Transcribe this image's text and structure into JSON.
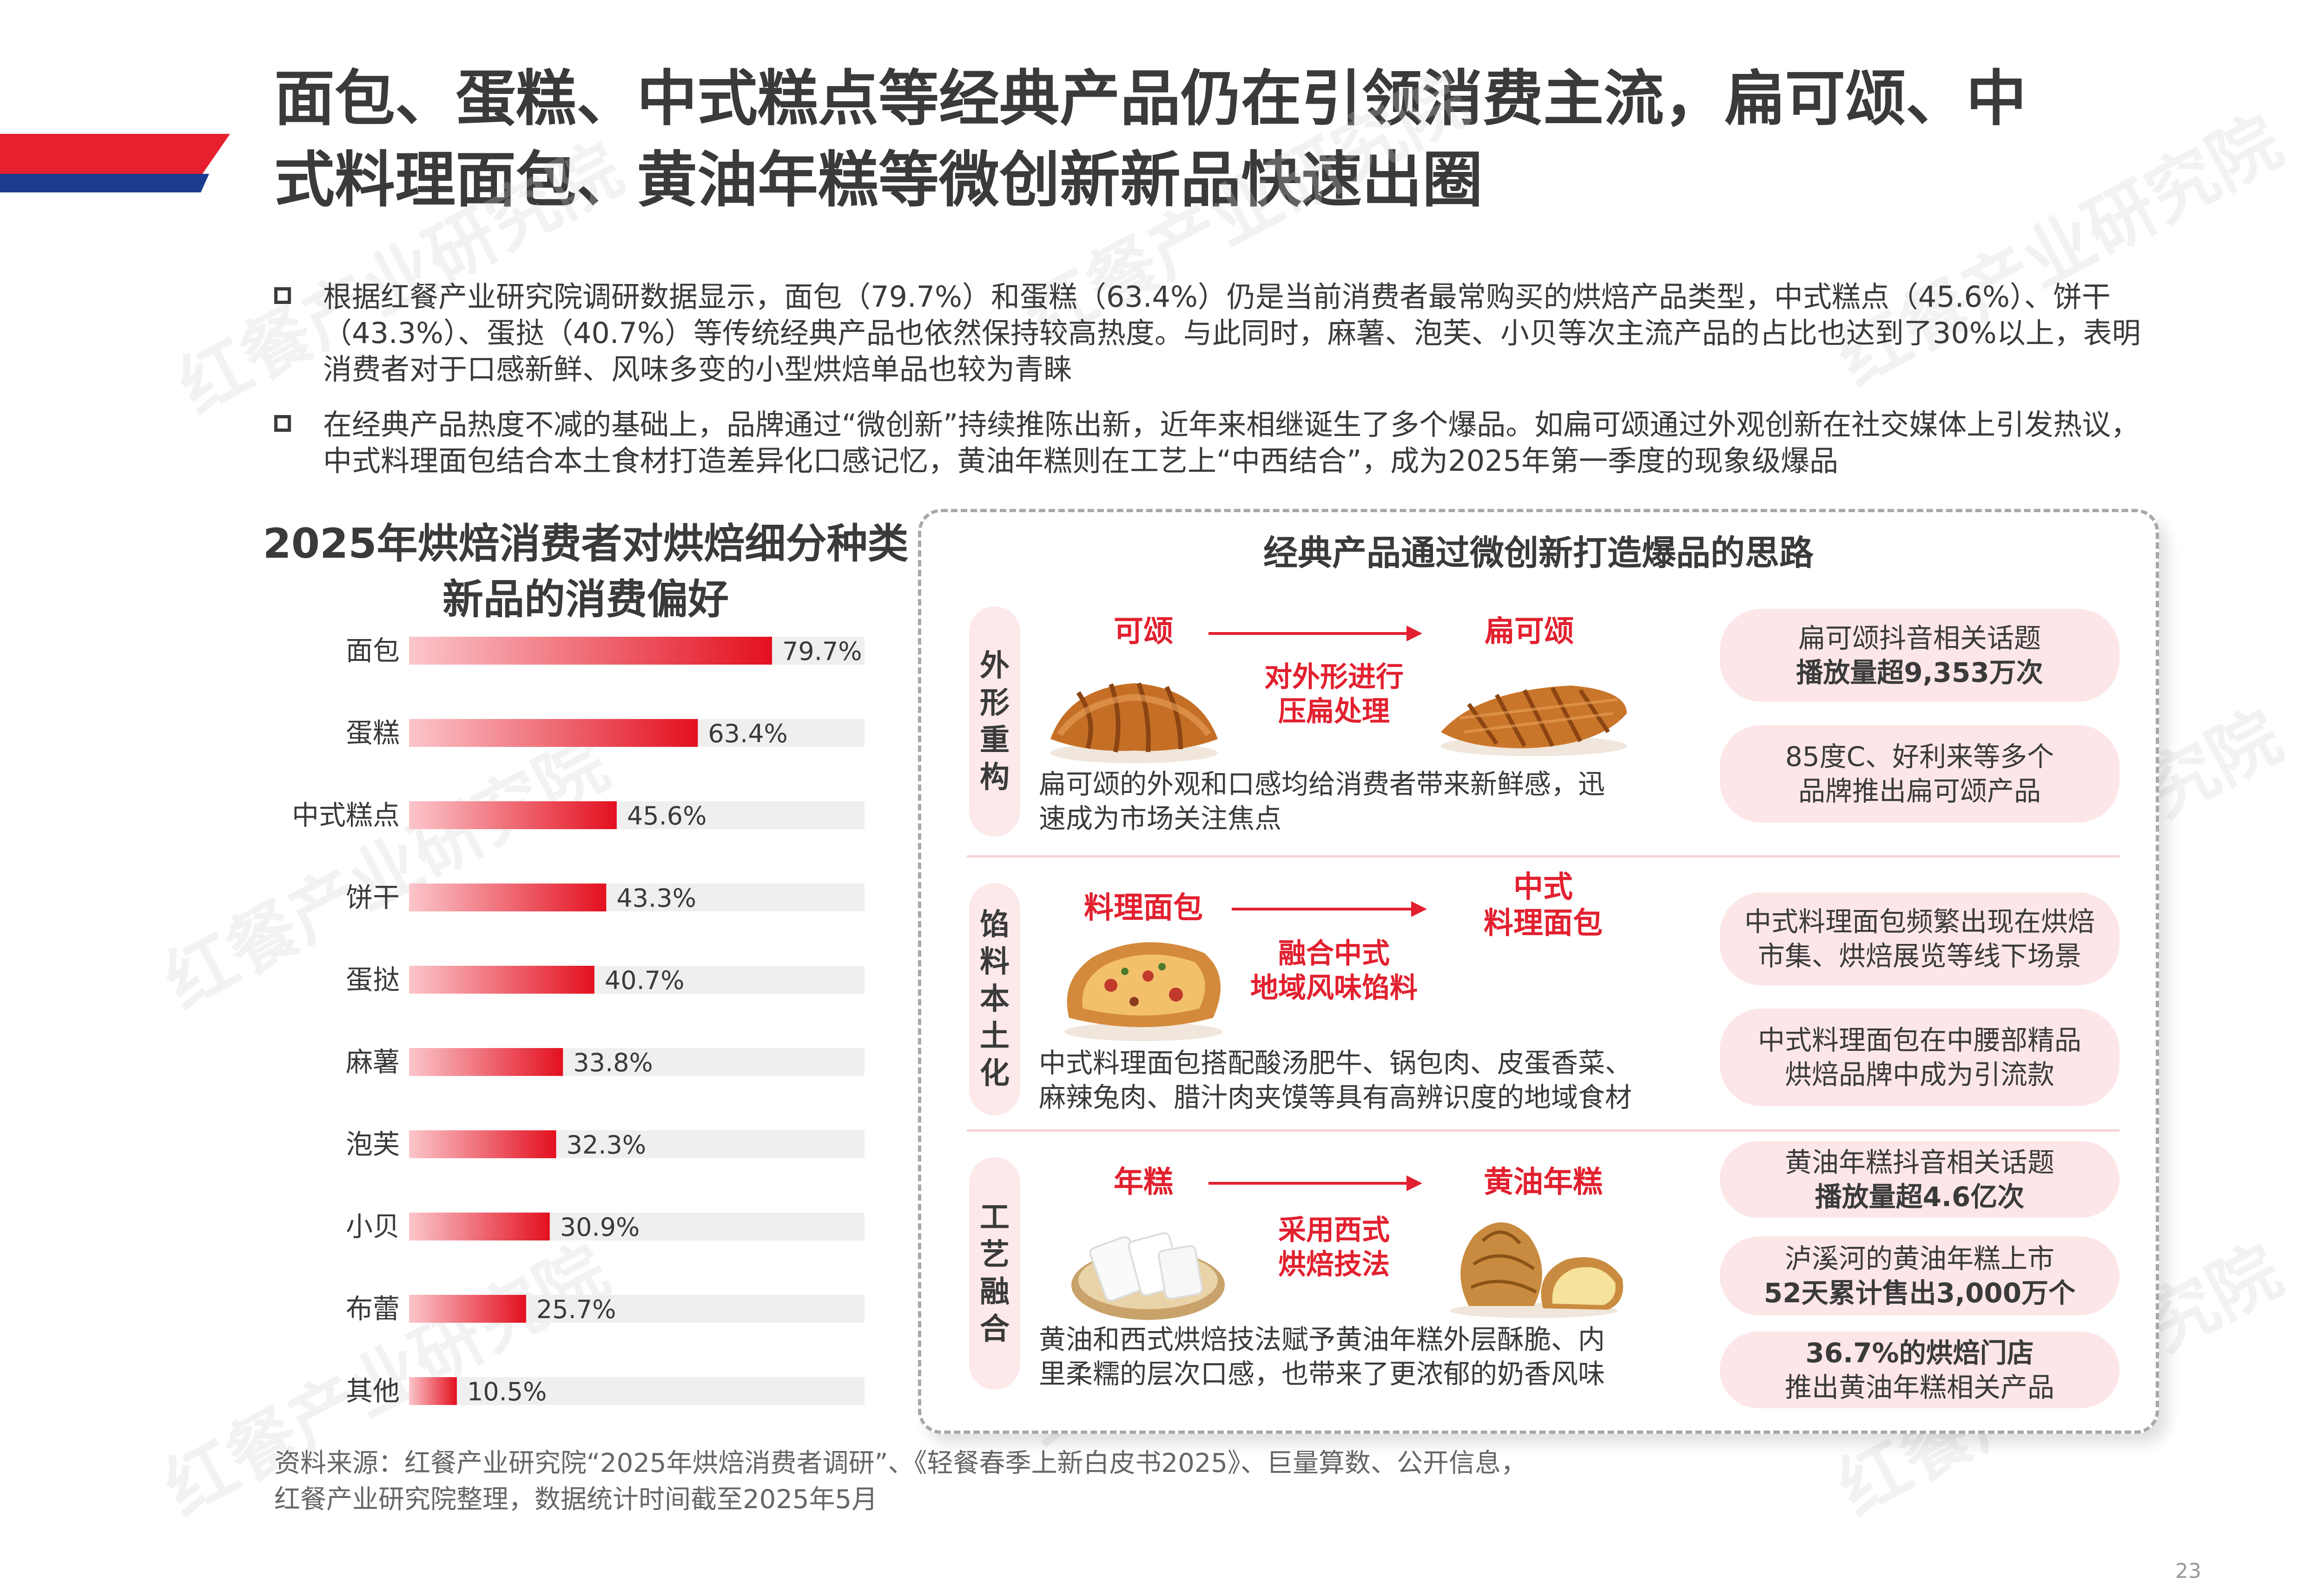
{
  "title": {
    "line1": "面包、蛋糕、中式糕点等经典产品仍在引领消费主流，扁可颂、中",
    "line2": "式料理面包、黄油年糕等微创新新品快速出圈"
  },
  "watermark": "红餐产业研究院",
  "bullets": [
    "根据红餐产业研究院调研数据显示，面包（79.7%）和蛋糕（63.4%）仍是当前消费者最常购买的烘焙产品类型，中式糕点（45.6%）、饼干（43.3%）、蛋挞（40.7%）等传统经典产品也依然保持较高热度。与此同时，麻薯、泡芙、小贝等次主流产品的占比也达到了30%以上，表明消费者对于口感新鲜、风味多变的小型烘焙单品也较为青睐",
    "在经典产品热度不减的基础上，品牌通过“微创新”持续推陈出新，近年来相继诞生了多个爆品。如扁可颂通过外观创新在社交媒体上引发热议，中式料理面包结合本土食材打造差异化口感记忆，黄油年糕则在工艺上“中西结合”，成为2025年第一季度的现象级爆品"
  ],
  "chart_data": {
    "type": "bar",
    "orientation": "horizontal",
    "title": "2025年烘焙消费者对烘焙细分种类新品的消费偏好",
    "categories": [
      "面包",
      "蛋糕",
      "中式糕点",
      "饼干",
      "蛋挞",
      "麻薯",
      "泡芙",
      "小贝",
      "布蕾",
      "其他"
    ],
    "values": [
      79.7,
      63.4,
      45.6,
      43.3,
      40.7,
      33.8,
      32.3,
      30.9,
      25.7,
      10.5
    ],
    "value_labels": [
      "79.7%",
      "63.4%",
      "45.6%",
      "43.3%",
      "40.7%",
      "33.8%",
      "32.3%",
      "30.9%",
      "25.7%",
      "10.5%"
    ],
    "xlim": [
      0,
      100
    ],
    "colors": {
      "bar_start": "#fbc6cb",
      "bar_end": "#e3101f",
      "track": "#efefef"
    }
  },
  "panel": {
    "title": "经典产品通过微创新打造爆品的思路",
    "rows": [
      {
        "label": "外形重构",
        "from": "可颂",
        "to": "扁可颂",
        "method_line1": "对外形进行",
        "method_line2": "压扁处理",
        "desc_line1": "扁可颂的外观和口感均给消费者带来新鲜感，迅",
        "desc_line2": "速成为市场关注焦点",
        "pills": [
          {
            "line1": "扁可颂抖音相关话题",
            "line2": "播放量超9,353万次",
            "bold_line": 2
          },
          {
            "line1": "85度C、好利来等多个",
            "line2": "品牌推出扁可颂产品",
            "bold_line": 0
          }
        ]
      },
      {
        "label": "馅料本土化",
        "from": "料理面包",
        "to_line1": "中式",
        "to_line2": "料理面包",
        "method_line1": "融合中式",
        "method_line2": "地域风味馅料",
        "desc_line1": "中式料理面包搭配酸汤肥牛、锅包肉、皮蛋香菜、",
        "desc_line2": "麻辣兔肉、腊汁肉夹馍等具有高辨识度的地域食材",
        "pills": [
          {
            "line1": "中式料理面包频繁出现在烘焙",
            "line2": "市集、烘焙展览等线下场景",
            "bold_line": 0
          },
          {
            "line1": "中式料理面包在中腰部精品",
            "line2": "烘焙品牌中成为引流款",
            "bold_line": 0
          }
        ]
      },
      {
        "label": "工艺融合",
        "from": "年糕",
        "to": "黄油年糕",
        "method_line1": "采用西式",
        "method_line2": "烘焙技法",
        "desc_line1": "黄油和西式烘焙技法赋予黄油年糕外层酥脆、内",
        "desc_line2": "里柔糯的层次口感，也带来了更浓郁的奶香风味",
        "pills": [
          {
            "line1": "黄油年糕抖音相关话题",
            "line2": "播放量超4.6亿次",
            "bold_line": 2
          },
          {
            "line1": "泸溪河的黄油年糕上市",
            "line2": "52天累计售出3,000万个",
            "bold_line": 2
          },
          {
            "line1": "36.7%的烘焙门店",
            "line2": "推出黄油年糕相关产品",
            "bold_line": 1
          }
        ]
      }
    ]
  },
  "footnote": {
    "line1": "资料来源：红餐产业研究院“2025年烘焙消费者调研”、《轻餐春季上新白皮书2025》、巨量算数、公开信息，",
    "line2": "红餐产业研究院整理，数据统计时间截至2025年5月"
  },
  "page_number": "23",
  "icons": [
    "croissant-icon",
    "flat-croissant-icon",
    "savory-bread-icon",
    "rice-cake-icon",
    "butter-rice-cake-icon"
  ],
  "colors": {
    "accent_red": "#e2202f",
    "stripe_blue": "#1c3c8f",
    "pill_bg": "#fde6e8"
  }
}
